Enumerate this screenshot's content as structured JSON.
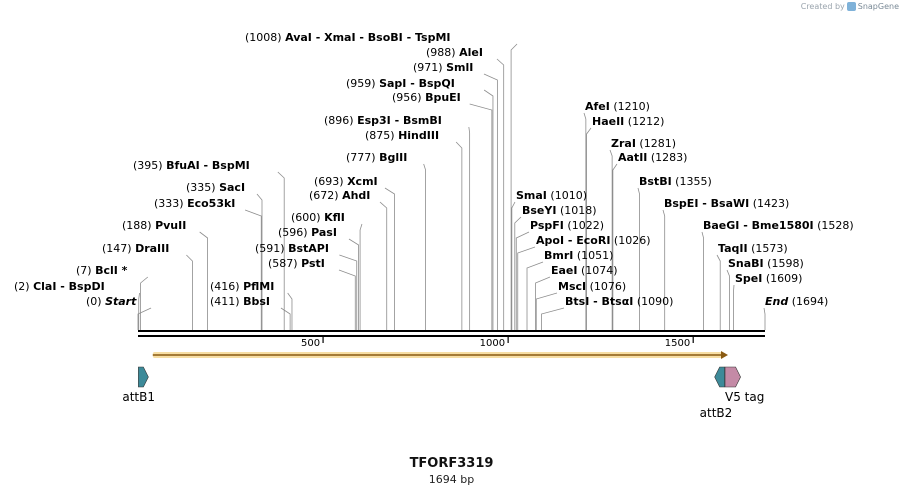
{
  "credit": {
    "prefix": "Created by",
    "brand": "SnapGene"
  },
  "sequence": {
    "name": "TFORF3319",
    "length_label": "1694 bp",
    "length": 1694
  },
  "ruler_ticks": [
    {
      "value": 500,
      "label": "500"
    },
    {
      "value": 1000,
      "label": "1000"
    },
    {
      "value": 1500,
      "label": "1500"
    }
  ],
  "features": [
    {
      "name": "attB1",
      "start": 1,
      "end": 25,
      "direction": "forward",
      "color": "#3d8a99"
    },
    {
      "name": "attB2",
      "start": 1558,
      "end": 1582,
      "direction": "reverse",
      "color": "#3d8a99"
    },
    {
      "name": "V5 tag",
      "start": 1586,
      "end": 1628,
      "direction": "forward",
      "color": "#c48aa6"
    }
  ],
  "orf": {
    "start": 40,
    "end": 1594,
    "color": "#f0c35a"
  },
  "sites": [
    {
      "pos": 0,
      "pos_label": "(0)",
      "names": [
        "Start"
      ],
      "italic": true
    },
    {
      "pos": 2,
      "pos_label": "(2)",
      "names": [
        "ClaI",
        "BspDI"
      ]
    },
    {
      "pos": 7,
      "pos_label": "(7)",
      "names": [
        "BclI *"
      ]
    },
    {
      "pos": 147,
      "pos_label": "(147)",
      "names": [
        "DraIII"
      ]
    },
    {
      "pos": 188,
      "pos_label": "(188)",
      "names": [
        "PvuII"
      ]
    },
    {
      "pos": 333,
      "pos_label": "(333)",
      "names": [
        "Eco53kI"
      ]
    },
    {
      "pos": 335,
      "pos_label": "(335)",
      "names": [
        "SacI"
      ]
    },
    {
      "pos": 395,
      "pos_label": "(395)",
      "names": [
        "BfuAI",
        "BspMI"
      ]
    },
    {
      "pos": 411,
      "pos_label": "(411)",
      "names": [
        "BbsI"
      ]
    },
    {
      "pos": 416,
      "pos_label": "(416)",
      "names": [
        "PflMI"
      ]
    },
    {
      "pos": 587,
      "pos_label": "(587)",
      "names": [
        "PstI"
      ]
    },
    {
      "pos": 591,
      "pos_label": "(591)",
      "names": [
        "BstAPI"
      ]
    },
    {
      "pos": 596,
      "pos_label": "(596)",
      "names": [
        "PasI"
      ]
    },
    {
      "pos": 600,
      "pos_label": "(600)",
      "names": [
        "KflI"
      ]
    },
    {
      "pos": 672,
      "pos_label": "(672)",
      "names": [
        "AhdI"
      ]
    },
    {
      "pos": 693,
      "pos_label": "(693)",
      "names": [
        "XcmI"
      ]
    },
    {
      "pos": 777,
      "pos_label": "(777)",
      "names": [
        "BglII"
      ]
    },
    {
      "pos": 875,
      "pos_label": "(875)",
      "names": [
        "HindIII"
      ]
    },
    {
      "pos": 896,
      "pos_label": "(896)",
      "names": [
        "Esp3I",
        "BsmBI"
      ]
    },
    {
      "pos": 956,
      "pos_label": "(956)",
      "names": [
        "BpuEI"
      ]
    },
    {
      "pos": 959,
      "pos_label": "(959)",
      "names": [
        "SapI",
        "BspQI"
      ]
    },
    {
      "pos": 971,
      "pos_label": "(971)",
      "names": [
        "SmlI"
      ]
    },
    {
      "pos": 988,
      "pos_label": "(988)",
      "names": [
        "AleI"
      ]
    },
    {
      "pos": 1008,
      "pos_label": "(1008)",
      "names": [
        "AvaI",
        "XmaI",
        "BsoBI",
        "TspMI"
      ]
    },
    {
      "pos": 1010,
      "pos_label": "(1010)",
      "names": [
        "SmaI"
      ]
    },
    {
      "pos": 1018,
      "pos_label": "(1018)",
      "names": [
        "BseYI"
      ]
    },
    {
      "pos": 1022,
      "pos_label": "(1022)",
      "names": [
        "PspFI"
      ]
    },
    {
      "pos": 1026,
      "pos_label": "(1026)",
      "names": [
        "ApoI",
        "EcoRI"
      ]
    },
    {
      "pos": 1051,
      "pos_label": "(1051)",
      "names": [
        "BmrI"
      ]
    },
    {
      "pos": 1074,
      "pos_label": "(1074)",
      "names": [
        "EaeI"
      ]
    },
    {
      "pos": 1076,
      "pos_label": "(1076)",
      "names": [
        "MscI"
      ]
    },
    {
      "pos": 1090,
      "pos_label": "(1090)",
      "names": [
        "BtsI",
        "BtsαI"
      ]
    },
    {
      "pos": 1210,
      "pos_label": "(1210)",
      "names": [
        "AfeI"
      ]
    },
    {
      "pos": 1212,
      "pos_label": "(1212)",
      "names": [
        "HaeII"
      ]
    },
    {
      "pos": 1281,
      "pos_label": "(1281)",
      "names": [
        "ZraI"
      ]
    },
    {
      "pos": 1283,
      "pos_label": "(1283)",
      "names": [
        "AatII"
      ]
    },
    {
      "pos": 1355,
      "pos_label": "(1355)",
      "names": [
        "BstBI"
      ]
    },
    {
      "pos": 1423,
      "pos_label": "(1423)",
      "names": [
        "BspEI",
        "BsaWI"
      ]
    },
    {
      "pos": 1528,
      "pos_label": "(1528)",
      "names": [
        "BaeGI",
        "Bme1580I"
      ]
    },
    {
      "pos": 1573,
      "pos_label": "(1573)",
      "names": [
        "TaqII"
      ]
    },
    {
      "pos": 1598,
      "pos_label": "(1598)",
      "names": [
        "SnaBI"
      ]
    },
    {
      "pos": 1609,
      "pos_label": "(1609)",
      "names": [
        "SpeI"
      ]
    },
    {
      "pos": 1694,
      "pos_label": "(1694)",
      "names": [
        "End"
      ],
      "italic": true
    }
  ]
}
